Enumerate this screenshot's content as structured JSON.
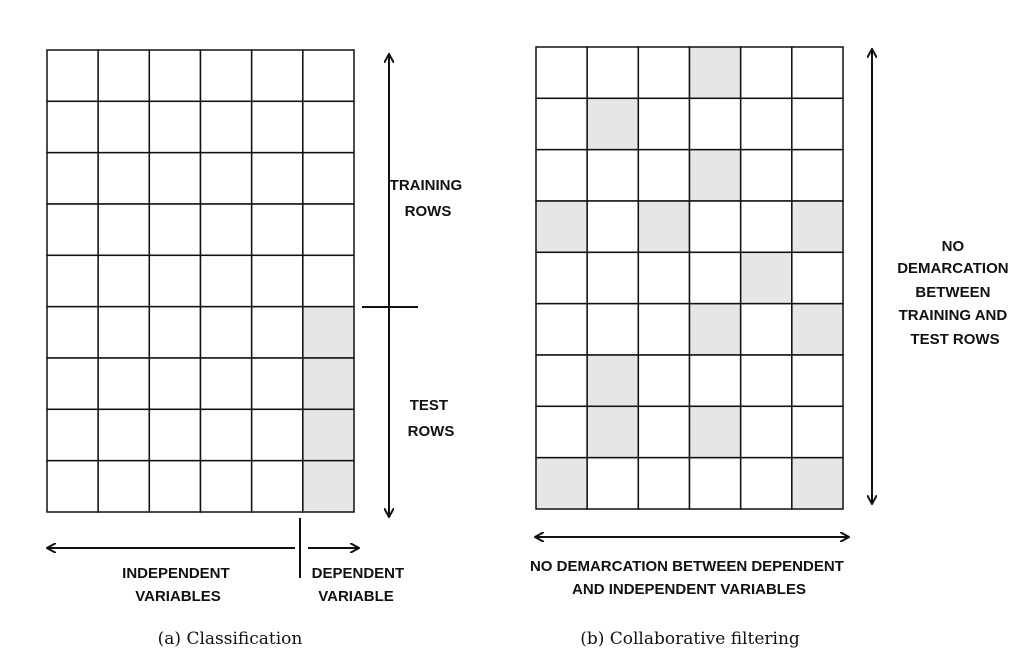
{
  "colors": {
    "line": "#111111",
    "shaded": "#e6e6e6",
    "empty": "#ffffff"
  },
  "panel_a": {
    "caption": "(a) Classification",
    "rows": 9,
    "cols": 6,
    "shaded_cells": [
      [
        5,
        5
      ],
      [
        6,
        5
      ],
      [
        7,
        5
      ],
      [
        8,
        5
      ]
    ],
    "labels": {
      "training_rows": [
        "TRAINING",
        "ROWS"
      ],
      "test_rows": [
        "TEST",
        "ROWS"
      ],
      "independent_variables": [
        "INDEPENDENT",
        "VARIABLES"
      ],
      "dependent_variable": [
        "DEPENDENT",
        "VARIABLE"
      ]
    }
  },
  "panel_b": {
    "caption": "(b) Collaborative filtering",
    "rows": 9,
    "cols": 6,
    "shaded_cells": [
      [
        0,
        3
      ],
      [
        1,
        1
      ],
      [
        2,
        3
      ],
      [
        3,
        0
      ],
      [
        3,
        2
      ],
      [
        3,
        5
      ],
      [
        4,
        4
      ],
      [
        5,
        3
      ],
      [
        5,
        5
      ],
      [
        6,
        1
      ],
      [
        7,
        1
      ],
      [
        7,
        3
      ],
      [
        8,
        0
      ],
      [
        8,
        5
      ]
    ],
    "labels": {
      "rows_note": [
        "NO",
        "DEMARCATION",
        "BETWEEN",
        "TRAINING AND",
        "TEST ROWS"
      ],
      "columns_note": [
        "NO DEMARCATION BETWEEN DEPENDENT",
        "AND INDEPENDENT VARIABLES"
      ]
    }
  }
}
